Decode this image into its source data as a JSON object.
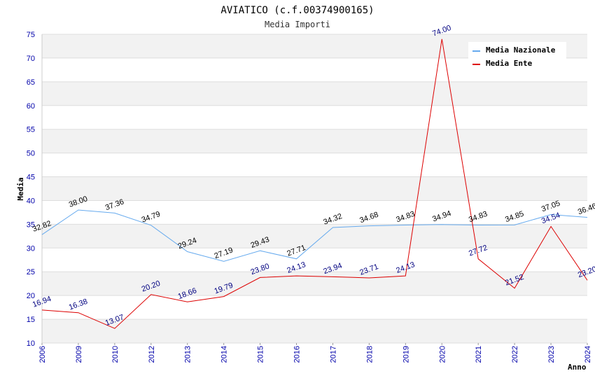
{
  "chart_data": {
    "type": "line",
    "title": "AVIATICO (c.f.00374900165)",
    "subtitle": "Media Importi",
    "xlabel": "Anno",
    "ylabel": "Media",
    "categories": [
      "2006",
      "2009",
      "2010",
      "2012",
      "2013",
      "2014",
      "2015",
      "2016",
      "2017",
      "2018",
      "2019",
      "2020",
      "2021",
      "2022",
      "2023",
      "2024"
    ],
    "ylim": [
      10,
      75
    ],
    "yticks": [
      "10",
      "15",
      "20",
      "25",
      "30",
      "35",
      "40",
      "45",
      "50",
      "55",
      "60",
      "65",
      "70",
      "75"
    ],
    "legend_position": "top-right",
    "series": [
      {
        "name": "Media Nazionale",
        "color": "#66aaee",
        "values": [
          32.82,
          38.0,
          37.36,
          34.79,
          29.24,
          27.19,
          29.43,
          27.71,
          34.32,
          34.68,
          34.83,
          34.94,
          34.83,
          34.85,
          37.05,
          36.46
        ],
        "labels": [
          "32.82",
          "38.00",
          "37.36",
          "34.79",
          "29.24",
          "27.19",
          "29.43",
          "27.71",
          "34.32",
          "34.68",
          "34.83",
          "34.94",
          "34.83",
          "34.85",
          "37.05",
          "36.46"
        ]
      },
      {
        "name": "Media Ente",
        "color": "#dd0000",
        "values": [
          16.94,
          16.38,
          13.07,
          20.2,
          18.66,
          19.79,
          23.8,
          24.13,
          23.94,
          23.71,
          24.13,
          74.0,
          27.72,
          21.52,
          34.54,
          23.2
        ],
        "labels": [
          "16.94",
          "16.38",
          "13.07",
          "20.20",
          "18.66",
          "19.79",
          "23.80",
          "24.13",
          "23.94",
          "23.71",
          "24.13",
          "74.00",
          "27.72",
          "21.52",
          "34.54",
          "23.20"
        ]
      }
    ]
  }
}
